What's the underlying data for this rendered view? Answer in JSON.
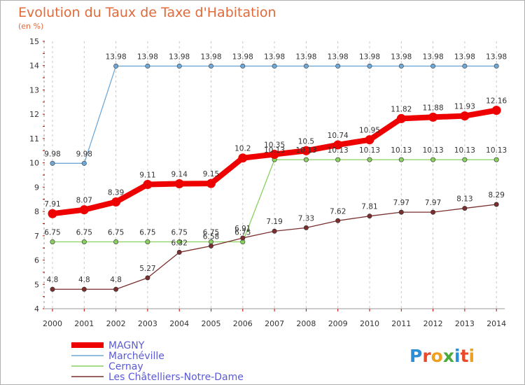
{
  "brand": "Proxiti",
  "chart_data": {
    "type": "line",
    "title": "Evolution du Taux de Taxe d'Habitation",
    "subtitle": "(en %)",
    "xlabel": "",
    "ylabel": "",
    "x": [
      2000,
      2001,
      2002,
      2003,
      2004,
      2005,
      2006,
      2007,
      2008,
      2009,
      2010,
      2011,
      2012,
      2013,
      2014
    ],
    "ylim": [
      4,
      15
    ],
    "yticks": [
      4,
      5,
      6,
      7,
      8,
      9,
      10,
      11,
      12,
      13,
      14,
      15
    ],
    "grid": "vertical dashed",
    "legend": "bottom-left",
    "series": [
      {
        "name": "MAGNY",
        "color": "#ee0000",
        "values": [
          7.91,
          8.07,
          8.39,
          9.11,
          9.14,
          9.15,
          10.2,
          10.35,
          10.5,
          10.74,
          10.95,
          11.82,
          11.88,
          11.93,
          12.16
        ],
        "labels": [
          "7.91",
          "8.07",
          "8.39",
          "9.11",
          "9.14",
          "9.15",
          "10.2",
          "10.35",
          "10.5",
          "10.74",
          "10.95",
          "11.82",
          "11.88",
          "11.93",
          "12.16"
        ]
      },
      {
        "name": "Marchéville",
        "color": "#6fa8d6",
        "values": [
          9.98,
          9.98,
          13.98,
          13.98,
          13.98,
          13.98,
          13.98,
          13.98,
          13.98,
          13.98,
          13.98,
          13.98,
          13.98,
          13.98,
          13.98
        ],
        "labels": [
          "9.98",
          "9.98",
          "13.98",
          "13.98",
          "13.98",
          "13.98",
          "13.98",
          "13.98",
          "13.98",
          "13.98",
          "13.98",
          "13.98",
          "13.98",
          "13.98",
          "13.98"
        ]
      },
      {
        "name": "Cernay",
        "color": "#88d060",
        "values": [
          6.75,
          6.75,
          6.75,
          6.75,
          6.75,
          6.75,
          6.75,
          10.13,
          10.13,
          10.13,
          10.13,
          10.13,
          10.13,
          10.13,
          10.13
        ],
        "labels": [
          "6.75",
          "6.75",
          "6.75",
          "6.75",
          "6.75",
          "6.75",
          "6.75",
          "10.13",
          "10.13",
          "10.13",
          "10.13",
          "10.13",
          "10.13",
          "10.13",
          "10.13"
        ]
      },
      {
        "name": "Les Châtelliers-Notre-Dame",
        "color": "#7a2e2e",
        "values": [
          4.8,
          4.8,
          4.8,
          5.27,
          6.32,
          6.58,
          6.91,
          7.19,
          7.33,
          7.62,
          7.81,
          7.97,
          7.97,
          8.13,
          8.29
        ],
        "labels": [
          "4.8",
          "4.8",
          "4.8",
          "5.27",
          "6.32",
          "6.58",
          "6.91",
          "7.19",
          "7.33",
          "7.62",
          "7.81",
          "7.97",
          "7.97",
          "8.13",
          "8.29"
        ]
      }
    ]
  }
}
